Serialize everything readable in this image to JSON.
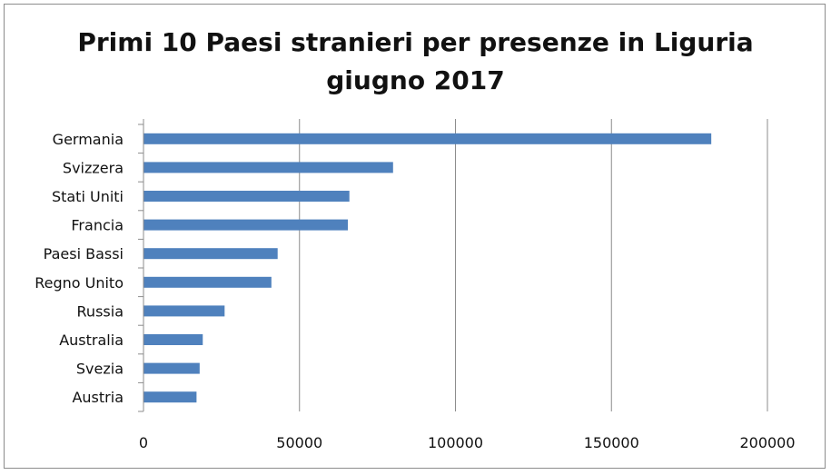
{
  "chart_data": {
    "type": "bar",
    "orientation": "horizontal",
    "title": "Primi 10 Paesi stranieri per presenze in Liguria",
    "subtitle": "giugno 2017",
    "xlabel": "",
    "ylabel": "",
    "categories": [
      "Germania",
      "Svizzera",
      "Stati Uniti",
      "Francia",
      "Paesi Bassi",
      "Regno Unito",
      "Russia",
      "Australia",
      "Svezia",
      "Austria"
    ],
    "values": [
      182000,
      80000,
      66000,
      65500,
      43000,
      41000,
      26000,
      19000,
      18000,
      17000
    ],
    "xlim": [
      0,
      200000
    ],
    "xticks": [
      0,
      50000,
      100000,
      150000,
      200000
    ],
    "xtick_labels": [
      "0",
      "50000",
      "100000",
      "150000",
      "200000"
    ],
    "grid": "vertical",
    "legend": "none",
    "bar_color": "#4f81bd"
  }
}
